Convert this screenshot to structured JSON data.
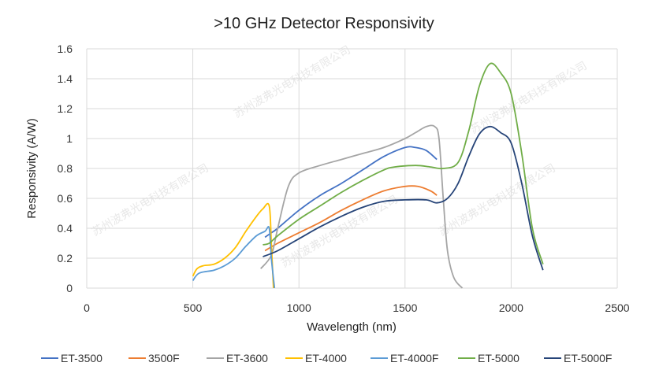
{
  "watermark": "苏州波弗光电科技有限公司",
  "chart_data": {
    "type": "line",
    "title": ">10 GHz Detector Responsivity",
    "xlabel": "Wavelength (nm)",
    "ylabel": "Responsivity (A/W)",
    "xlim": [
      0,
      2500
    ],
    "ylim": [
      0,
      1.6
    ],
    "xticks": [
      "0",
      "500",
      "1000",
      "1500",
      "2000",
      "2500"
    ],
    "yticks": [
      "0",
      "0.2",
      "0.4",
      "0.6",
      "0.8",
      "1",
      "1.2",
      "1.4",
      "1.6"
    ],
    "grid": true,
    "legend_position": "bottom",
    "series": [
      {
        "name": "ET-3500",
        "color": "#4472c4",
        "x": [
          840,
          870,
          900,
          1000,
          1100,
          1200,
          1300,
          1400,
          1500,
          1550,
          1600,
          1650
        ],
        "y": [
          0.34,
          0.37,
          0.4,
          0.52,
          0.62,
          0.7,
          0.79,
          0.88,
          0.94,
          0.94,
          0.92,
          0.86
        ]
      },
      {
        "name": "3500F",
        "color": "#ed7d31",
        "x": [
          840,
          900,
          1000,
          1100,
          1200,
          1300,
          1400,
          1500,
          1560,
          1620,
          1650
        ],
        "y": [
          0.25,
          0.3,
          0.37,
          0.44,
          0.52,
          0.59,
          0.65,
          0.68,
          0.68,
          0.65,
          0.62
        ]
      },
      {
        "name": "ET-3600",
        "color": "#a5a5a5",
        "x": [
          820,
          870,
          900,
          950,
          1000,
          1100,
          1200,
          1300,
          1400,
          1500,
          1550,
          1600,
          1640,
          1660,
          1680,
          1700,
          1730,
          1770
        ],
        "y": [
          0.13,
          0.22,
          0.4,
          0.68,
          0.77,
          0.82,
          0.86,
          0.9,
          0.94,
          1.0,
          1.04,
          1.08,
          1.08,
          1.0,
          0.6,
          0.25,
          0.07,
          0.0
        ]
      },
      {
        "name": "ET-4000",
        "color": "#ffc000",
        "x": [
          500,
          520,
          550,
          600,
          650,
          700,
          750,
          800,
          830,
          860,
          870,
          880
        ],
        "y": [
          0.08,
          0.13,
          0.15,
          0.16,
          0.2,
          0.27,
          0.38,
          0.48,
          0.53,
          0.55,
          0.3,
          0.0
        ]
      },
      {
        "name": "ET-4000F",
        "color": "#5b9bd5",
        "x": [
          500,
          530,
          600,
          650,
          700,
          750,
          800,
          840,
          860,
          870,
          885
        ],
        "y": [
          0.05,
          0.1,
          0.12,
          0.15,
          0.2,
          0.28,
          0.35,
          0.38,
          0.4,
          0.2,
          0.0
        ]
      },
      {
        "name": "ET-5000",
        "color": "#70ad47",
        "x": [
          830,
          860,
          900,
          1000,
          1100,
          1200,
          1300,
          1400,
          1450,
          1550,
          1620,
          1680,
          1750,
          1800,
          1850,
          1900,
          1950,
          2000,
          2050,
          2100,
          2150
        ],
        "y": [
          0.29,
          0.3,
          0.35,
          0.46,
          0.55,
          0.64,
          0.72,
          0.79,
          0.81,
          0.82,
          0.81,
          0.8,
          0.84,
          1.05,
          1.35,
          1.5,
          1.44,
          1.3,
          0.9,
          0.4,
          0.16
        ]
      },
      {
        "name": "ET-5000F",
        "color": "#264478",
        "x": [
          830,
          900,
          1000,
          1100,
          1200,
          1300,
          1400,
          1500,
          1600,
          1650,
          1700,
          1750,
          1800,
          1850,
          1900,
          1950,
          2000,
          2050,
          2100,
          2150
        ],
        "y": [
          0.21,
          0.25,
          0.33,
          0.41,
          0.48,
          0.54,
          0.58,
          0.59,
          0.59,
          0.57,
          0.6,
          0.7,
          0.88,
          1.03,
          1.08,
          1.04,
          0.97,
          0.7,
          0.35,
          0.12
        ]
      }
    ]
  }
}
